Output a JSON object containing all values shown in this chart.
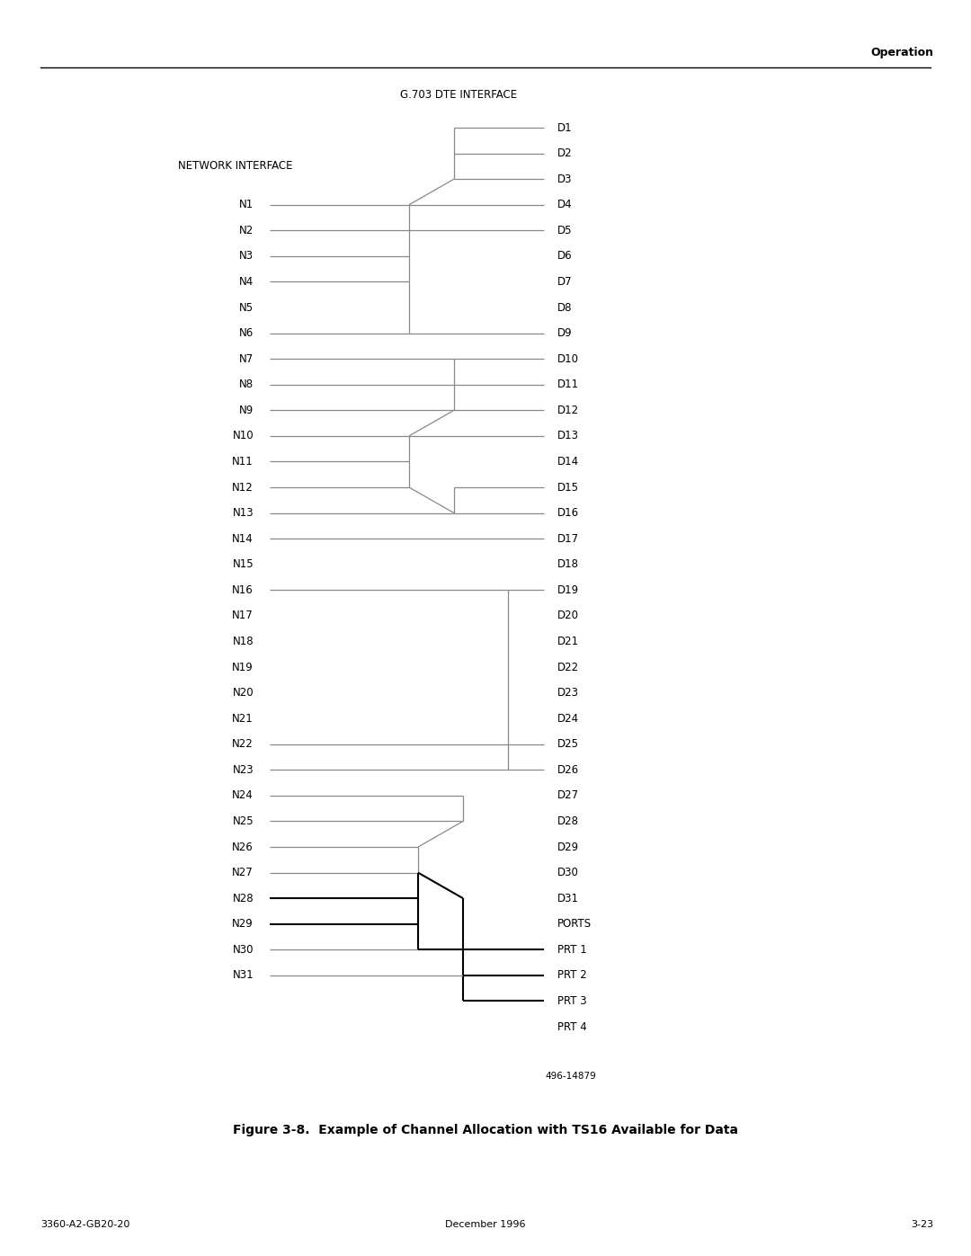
{
  "bg_color": "#ffffff",
  "text_color": "#000000",
  "line_color_gray": "#888888",
  "line_color_black": "#000000",
  "page_header": "Operation",
  "dte_label": "G.703 DTE INTERFACE",
  "net_label": "NETWORK INTERFACE",
  "figure_caption": "Figure 3-8.  Example of Channel Allocation with TS16 Available for Data",
  "figure_id": "496-14879",
  "footer_left": "3360-A2-GB20-20",
  "footer_center": "December 1996",
  "footer_right": "3-23",
  "n_labels": [
    "N1",
    "N2",
    "N3",
    "N4",
    "N5",
    "N6",
    "N7",
    "N8",
    "N9",
    "N10",
    "N11",
    "N12",
    "N13",
    "N14",
    "N15",
    "N16",
    "N17",
    "N18",
    "N19",
    "N20",
    "N21",
    "N22",
    "N23",
    "N24",
    "N25",
    "N26",
    "N27",
    "N28",
    "N29",
    "N30",
    "N31"
  ],
  "d_labels": [
    "D1",
    "D2",
    "D3",
    "D4",
    "D5",
    "D6",
    "D7",
    "D8",
    "D9",
    "D10",
    "D11",
    "D12",
    "D13",
    "D14",
    "D15",
    "D16",
    "D17",
    "D18",
    "D19",
    "D20",
    "D21",
    "D22",
    "D23",
    "D24",
    "D25",
    "D26",
    "D27",
    "D28",
    "D29",
    "D30",
    "D31"
  ],
  "port_labels": [
    "PORTS",
    "PRT 1",
    "PRT 2",
    "PRT 3",
    "PRT 4"
  ]
}
